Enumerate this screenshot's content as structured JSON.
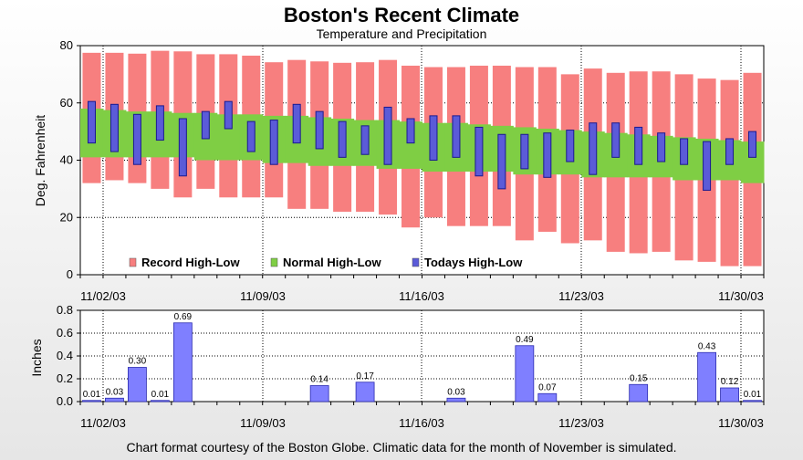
{
  "title": "Boston's Recent Climate",
  "subtitle": "Temperature and Precipitation",
  "footer": "Chart format courtesy of the Boston Globe. Climatic data for the month of November is simulated.",
  "colors": {
    "record": "#f77f7f",
    "normal": "#7fce44",
    "today": "#5b5bd8",
    "precip": "#7f7fff"
  },
  "chart_data": [
    {
      "type": "bar",
      "name": "temperature",
      "ylabel": "Deg. Fahrenheit",
      "ylim": [
        0,
        80
      ],
      "yticks": [
        "0",
        "20",
        "40",
        "60",
        "80"
      ],
      "xticks": [
        "11/02/03",
        "11/09/03",
        "11/16/03",
        "11/23/03",
        "11/30/03"
      ],
      "grid": true,
      "legend_position": "bottom-left",
      "legend": [
        "Record High-Low",
        "Normal High-Low",
        "Todays High-Low"
      ],
      "days": 30,
      "record": [
        [
          32,
          77.5
        ],
        [
          33,
          77.5
        ],
        [
          32,
          77.2
        ],
        [
          30,
          78.2
        ],
        [
          27,
          78
        ],
        [
          30,
          77
        ],
        [
          27,
          77
        ],
        [
          27,
          76.5
        ],
        [
          27,
          74.2
        ],
        [
          23,
          75
        ],
        [
          23,
          74.5
        ],
        [
          22,
          74
        ],
        [
          22,
          74.2
        ],
        [
          21,
          75
        ],
        [
          16.5,
          73
        ],
        [
          20,
          72.5
        ],
        [
          17,
          72.5
        ],
        [
          17,
          73
        ],
        [
          17,
          73
        ],
        [
          12,
          72.5
        ],
        [
          15,
          72.5
        ],
        [
          11,
          70
        ],
        [
          12,
          72
        ],
        [
          8,
          70.5
        ],
        [
          7.5,
          71
        ],
        [
          8,
          71
        ],
        [
          5,
          70
        ],
        [
          4.5,
          68.5
        ],
        [
          3,
          68
        ],
        [
          3,
          70.5
        ]
      ],
      "normal": [
        [
          41,
          58
        ],
        [
          41,
          57.5
        ],
        [
          41,
          57
        ],
        [
          41,
          57
        ],
        [
          41,
          56.5
        ],
        [
          40,
          56.5
        ],
        [
          40,
          56
        ],
        [
          40,
          56
        ],
        [
          39,
          55.5
        ],
        [
          39,
          55.5
        ],
        [
          38,
          55
        ],
        [
          38,
          54.5
        ],
        [
          38,
          54
        ],
        [
          37,
          54
        ],
        [
          37,
          53.5
        ],
        [
          36,
          53
        ],
        [
          36,
          53
        ],
        [
          36,
          52.5
        ],
        [
          36,
          52
        ],
        [
          35,
          51.5
        ],
        [
          35,
          51
        ],
        [
          35,
          50.5
        ],
        [
          34,
          50
        ],
        [
          34,
          49.5
        ],
        [
          34,
          49
        ],
        [
          34,
          48.5
        ],
        [
          33,
          48
        ],
        [
          33,
          47.5
        ],
        [
          33,
          47
        ],
        [
          32,
          46.5
        ]
      ],
      "today": [
        [
          46,
          60.5
        ],
        [
          43,
          59.5
        ],
        [
          38.5,
          56
        ],
        [
          47,
          59
        ],
        [
          34.5,
          54.5
        ],
        [
          47.5,
          57
        ],
        [
          51,
          60.5
        ],
        [
          43,
          53.5
        ],
        [
          38.5,
          54
        ],
        [
          46,
          59.5
        ],
        [
          44,
          57
        ],
        [
          41,
          53.5
        ],
        [
          42,
          52
        ],
        [
          38.5,
          58.5
        ],
        [
          46,
          54.5
        ],
        [
          40,
          55.5
        ],
        [
          41,
          55.5
        ],
        [
          34.5,
          51.5
        ],
        [
          30,
          49
        ],
        [
          37,
          49
        ],
        [
          34,
          49.5
        ],
        [
          39.5,
          50.5
        ],
        [
          35,
          53
        ],
        [
          41,
          53
        ],
        [
          38.5,
          51.5
        ],
        [
          39.5,
          49.5
        ],
        [
          38.5,
          47.5
        ],
        [
          29.5,
          46.5
        ],
        [
          38.5,
          47.5
        ],
        [
          41,
          50
        ]
      ]
    },
    {
      "type": "bar",
      "name": "precipitation",
      "ylabel": "Inches",
      "ylim": [
        0,
        0.8
      ],
      "yticks": [
        "0.0",
        "0.2",
        "0.4",
        "0.6",
        "0.8"
      ],
      "xticks": [
        "11/02/03",
        "11/09/03",
        "11/16/03",
        "11/23/03",
        "11/30/03"
      ],
      "grid": true,
      "values": [
        0.01,
        0.03,
        0.3,
        0.01,
        0.69,
        0,
        0,
        0,
        0,
        0,
        0.14,
        0,
        0.17,
        0,
        0,
        0,
        0.03,
        0,
        0,
        0.49,
        0.07,
        0,
        0,
        0,
        0.15,
        0,
        0,
        0.43,
        0.12,
        0.01
      ],
      "labels": [
        "0.01",
        "0.03",
        "0.30",
        "0.01",
        "0.69",
        "",
        "",
        "",
        "",
        "",
        "0.14",
        "",
        "0.17",
        "",
        "",
        "",
        "0.03",
        "",
        "",
        "0.49",
        "0.07",
        "",
        "",
        "",
        "0.15",
        "",
        "",
        "0.43",
        "0.12",
        "0.01"
      ]
    }
  ]
}
